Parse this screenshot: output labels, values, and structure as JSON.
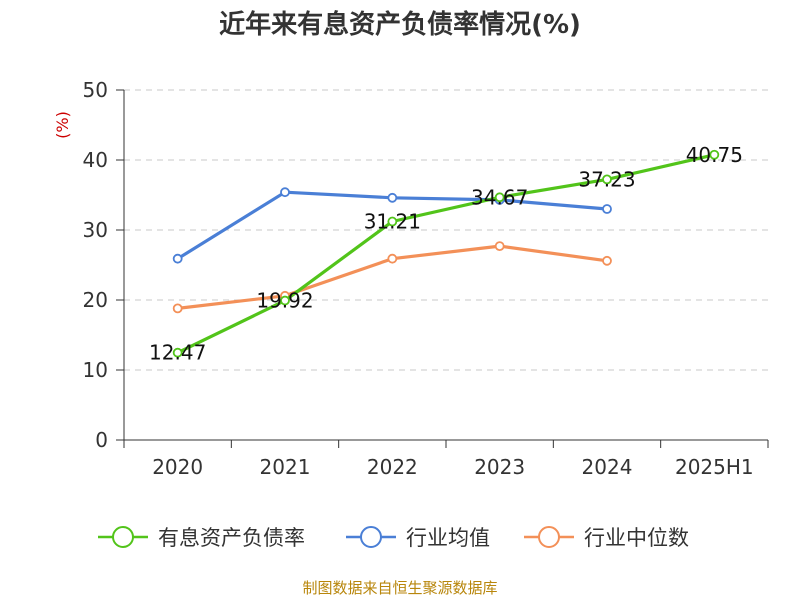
{
  "chart_data": {
    "type": "line",
    "title": "近年来有息资产负债率情况(%)",
    "ylabel": "(%)",
    "xlabel": "",
    "categories": [
      "2020",
      "2021",
      "2022",
      "2023",
      "2024",
      "2025H1"
    ],
    "ylim": [
      0,
      50
    ],
    "yticks": [
      0,
      10,
      20,
      30,
      40,
      50
    ],
    "grid": true,
    "legend_position": "bottom",
    "series": [
      {
        "name": "有息资产负债率",
        "color": "#52c41a",
        "values": [
          12.47,
          19.92,
          31.21,
          34.67,
          37.23,
          40.75
        ],
        "show_labels": true
      },
      {
        "name": "行业均值",
        "color": "#4a7fd6",
        "values": [
          25.9,
          35.4,
          34.6,
          34.3,
          33.0,
          null
        ],
        "show_labels": false
      },
      {
        "name": "行业中位数",
        "color": "#f39058",
        "values": [
          18.8,
          20.6,
          25.9,
          27.7,
          25.6,
          null
        ],
        "show_labels": false
      }
    ],
    "source": "制图数据来自恒生聚源数据库"
  }
}
